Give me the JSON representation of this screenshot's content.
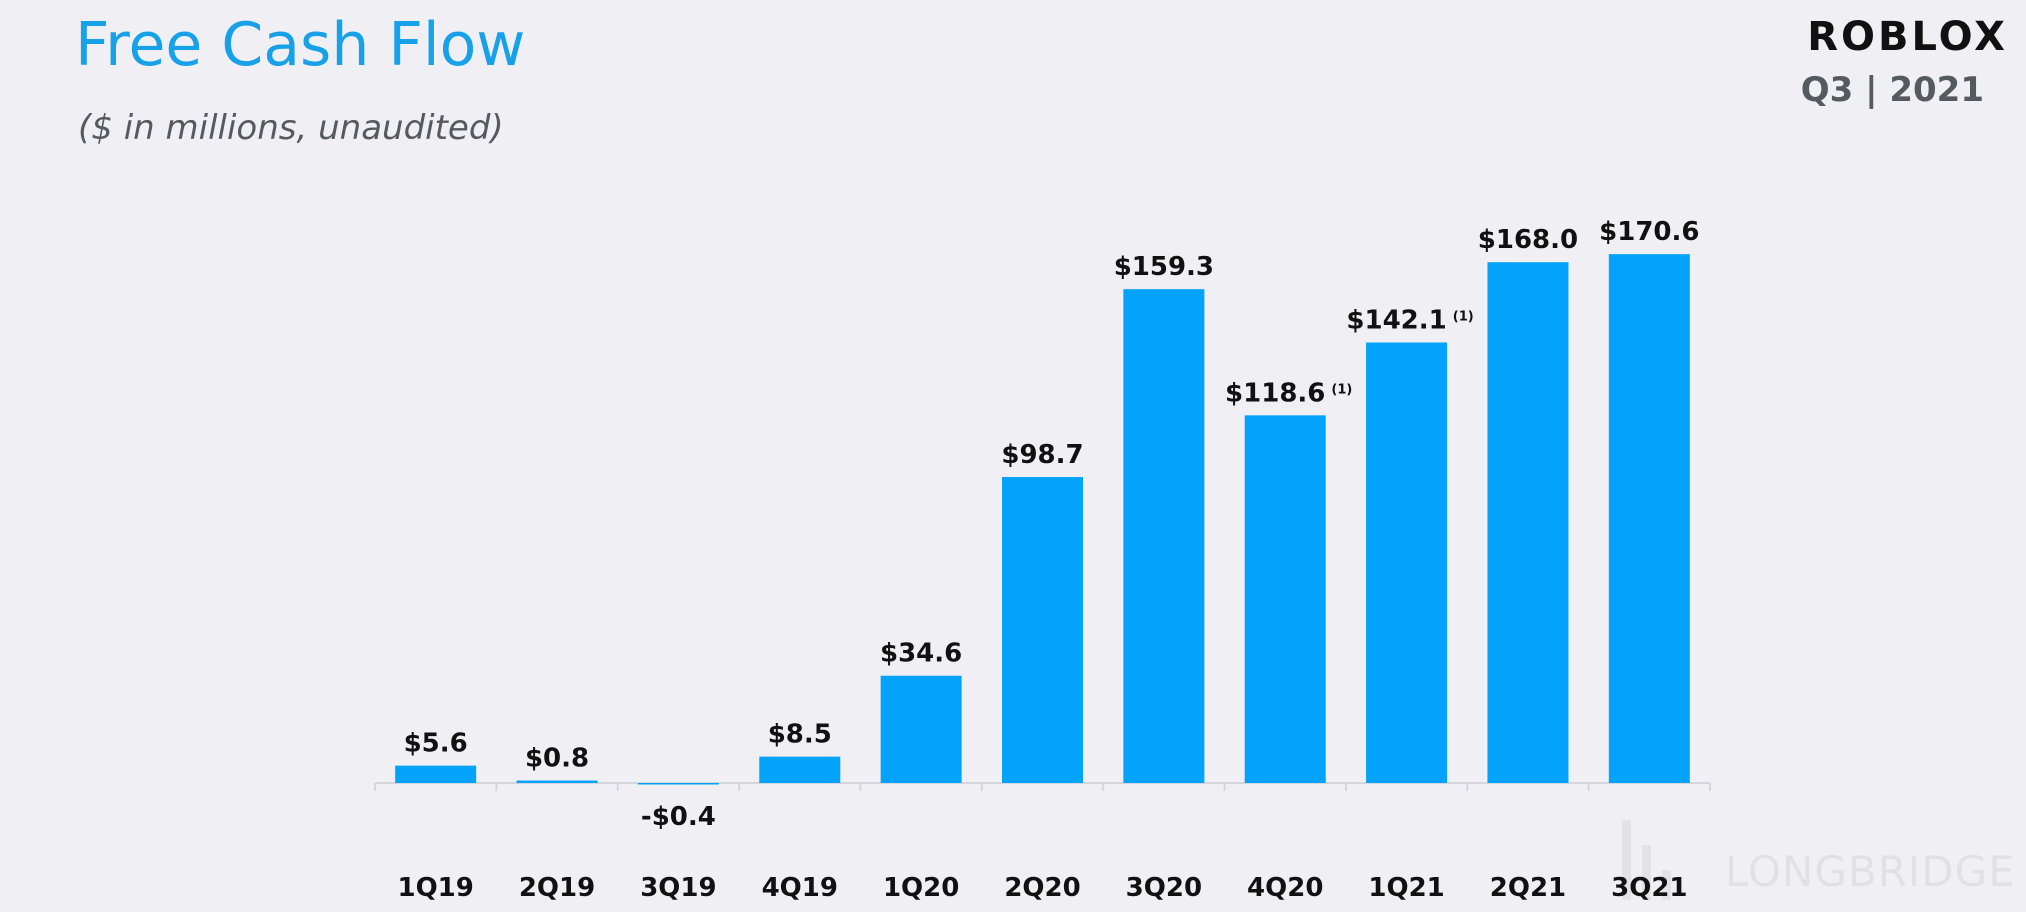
{
  "header": {
    "title": "Free Cash Flow",
    "subtitle": "($ in millions,  unaudited)",
    "brand": "ROBLOX",
    "period": "Q3 | 2021"
  },
  "watermark": {
    "text": "LONGBRIDGE"
  },
  "colors": {
    "accent": "#17a1e8",
    "bar": "#03a2fb",
    "background": "#f0f0f4"
  },
  "chart_data": {
    "type": "bar",
    "title": "Free Cash Flow",
    "subtitle": "($ in millions,  unaudited)",
    "xlabel": "",
    "ylabel": "",
    "grid": false,
    "legend": "none",
    "ylim": [
      -2,
      175
    ],
    "categories": [
      "1Q19",
      "2Q19",
      "3Q19",
      "4Q19",
      "1Q20",
      "2Q20",
      "3Q20",
      "4Q20",
      "1Q21",
      "2Q21",
      "3Q21"
    ],
    "values": [
      5.6,
      0.8,
      -0.4,
      8.5,
      34.6,
      98.7,
      159.3,
      118.6,
      142.1,
      168.0,
      170.6
    ],
    "labels": [
      "$5.6",
      "$0.8",
      "-$0.4",
      "$8.5",
      "$34.6",
      "$98.7",
      "$159.3",
      "$118.6",
      "$142.1",
      "$168.0",
      "$170.6"
    ],
    "notes": [
      "",
      "",
      "",
      "",
      "",
      "",
      "",
      "(1)",
      "(1)",
      "",
      ""
    ]
  }
}
